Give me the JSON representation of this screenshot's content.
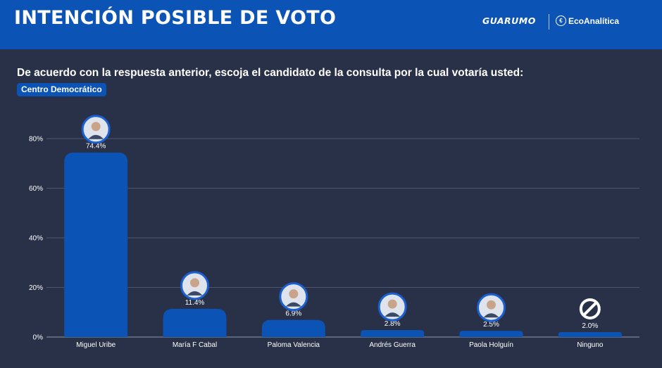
{
  "header": {
    "title": "INTENCIÓN POSIBLE DE VOTO",
    "logo_guarumo": "GUARUMO",
    "logo_eco": "EcoAnalítica"
  },
  "question": "De acuerdo con  la respuesta anterior, escoja el candidato de la consulta por la cual votaría usted:",
  "badge": "Centro Democrático",
  "colors": {
    "header": "#0c53b6",
    "bar": "#0c53b6",
    "background": "#283147"
  },
  "chart_data": {
    "type": "bar",
    "categories": [
      "Miguel Uribe",
      "María F Cabal",
      "Paloma Valencia",
      "Andrés Guerra",
      "Paola Holguín",
      "Ninguno"
    ],
    "values": [
      74.4,
      11.4,
      6.9,
      2.8,
      2.5,
      2.0
    ],
    "data_labels": [
      "74.4%",
      "11.4%",
      "6.9%",
      "2.8%",
      "2.5%",
      "2.0%"
    ],
    "ylim": [
      0,
      80
    ],
    "yticks": [
      0,
      20,
      40,
      60,
      80
    ],
    "ytick_labels": [
      "0%",
      "20%",
      "40%",
      "60%",
      "80%"
    ],
    "grid": true,
    "markers": [
      "avatar",
      "avatar",
      "avatar",
      "avatar",
      "avatar",
      "no-symbol-icon"
    ]
  }
}
